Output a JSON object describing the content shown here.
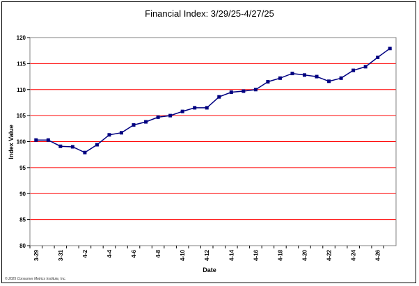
{
  "chart_data": {
    "type": "line",
    "title": "Financial Index: 3/29/25-4/27/25",
    "xlabel": "Date",
    "ylabel": "Index Value",
    "ylim": [
      80,
      120
    ],
    "yticks": [
      80,
      85,
      90,
      95,
      100,
      105,
      110,
      115,
      120
    ],
    "grid": true,
    "legend": "none",
    "colors": {
      "line": "#000080",
      "grid": "#ff0000",
      "plot_border": "#808080"
    },
    "x": [
      "3/29",
      "3/30",
      "3/31",
      "4/1",
      "4/2",
      "4/3",
      "4/4",
      "4/5",
      "4/6",
      "4/7",
      "4/8",
      "4/9",
      "4/10",
      "4/11",
      "4/12",
      "4/13",
      "4/14",
      "4/15",
      "4/16",
      "4/17",
      "4/18",
      "4/19",
      "4/20",
      "4/21",
      "4/22",
      "4/23",
      "4/24",
      "4/25",
      "4/26",
      "4/27"
    ],
    "xtick_labels": [
      "3-29",
      "",
      "3-31",
      "",
      "4-2",
      "",
      "4-4",
      "",
      "4-6",
      "",
      "4-8",
      "",
      "4-10",
      "",
      "4-12",
      "",
      "4-14",
      "",
      "4-16",
      "",
      "4-18",
      "",
      "4-20",
      "",
      "4-22",
      "",
      "4-24",
      "",
      "4-26",
      ""
    ],
    "series": [
      {
        "values": [
          100.3,
          100.3,
          99.1,
          99.0,
          97.9,
          99.4,
          101.3,
          101.7,
          103.2,
          103.8,
          104.7,
          105.0,
          105.8,
          106.5,
          106.5,
          108.6,
          109.5,
          109.7,
          110.0,
          111.5,
          112.2,
          113.1,
          112.8,
          112.5,
          111.6,
          112.2,
          113.7,
          114.4,
          116.2,
          117.9
        ]
      }
    ]
  },
  "footer": "© 2025 Consumer Metrics Institute, Inc."
}
